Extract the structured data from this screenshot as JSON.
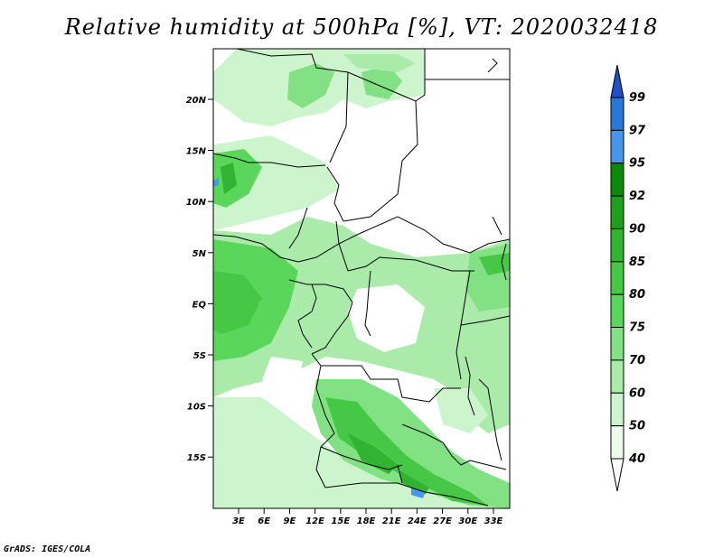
{
  "title": "Relative humidity at 500hPa [%], VT: 2020032418",
  "credit": "GrADS: IGES/COLA",
  "map": {
    "lat_labels": [
      "20N",
      "15N",
      "10N",
      "5N",
      "EQ",
      "5S",
      "10S",
      "15S"
    ],
    "lon_labels": [
      "3E",
      "6E",
      "9E",
      "12E",
      "15E",
      "18E",
      "21E",
      "24E",
      "27E",
      "30E",
      "33E"
    ]
  },
  "colorbar": {
    "labels": [
      "99",
      "97",
      "95",
      "92",
      "90",
      "85",
      "80",
      "75",
      "70",
      "60",
      "50",
      "40"
    ],
    "colors": [
      "#1e50c8",
      "#2878dc",
      "#4696eb",
      "#0a8a0a",
      "#1ea01e",
      "#32b432",
      "#46c846",
      "#5ad75a",
      "#82e182",
      "#aaebaa",
      "#cdf5cd",
      "#eefaee"
    ]
  }
}
